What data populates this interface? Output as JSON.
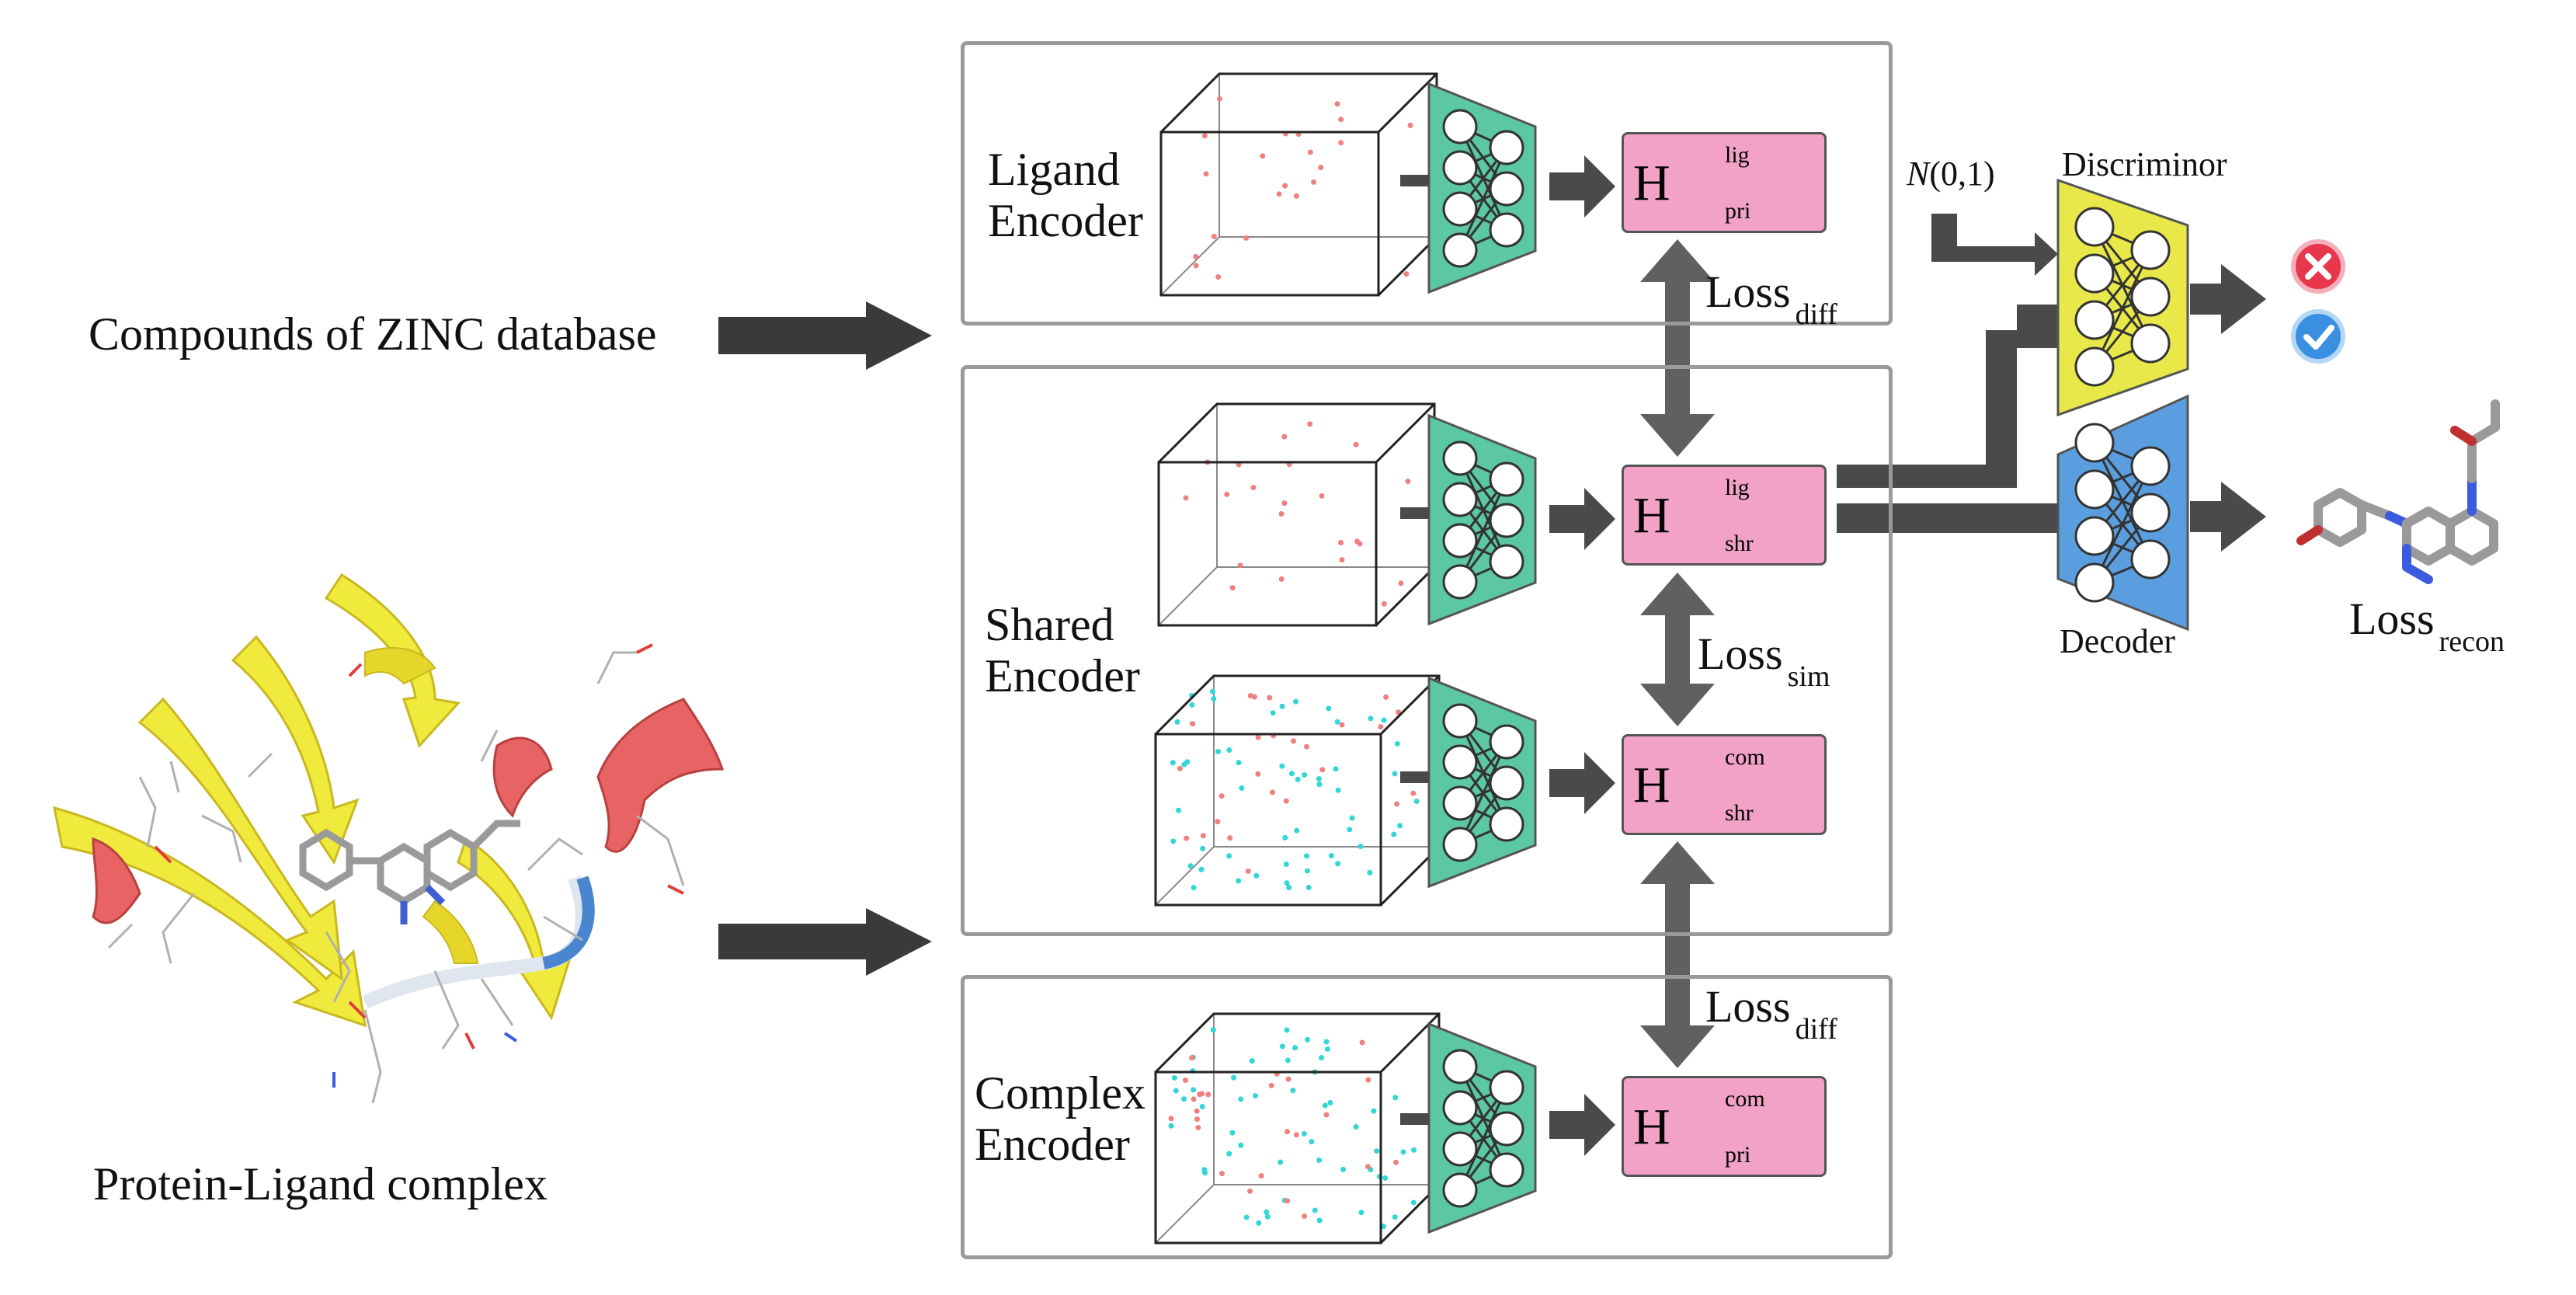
{
  "inputs": {
    "zinc_label": "Compounds of ZINC database",
    "complex_label": "Protein-Ligand complex"
  },
  "encoders": {
    "ligand": {
      "line1": "Ligand",
      "line2": "Encoder"
    },
    "shared": {
      "line1": "Shared",
      "line2": "Encoder"
    },
    "complex": {
      "line1": "Complex",
      "line2": "Encoder"
    }
  },
  "representations": {
    "h_lig_pri": {
      "main": "H",
      "sup": "lig",
      "sub": "pri"
    },
    "h_lig_shr": {
      "main": "H",
      "sup": "lig",
      "sub": "shr"
    },
    "h_com_shr": {
      "main": "H",
      "sup": "com",
      "sub": "shr"
    },
    "h_com_pri": {
      "main": "H",
      "sup": "com",
      "sub": "pri"
    }
  },
  "losses": {
    "diff_top": {
      "main": "Loss",
      "sub": "diff"
    },
    "sim": {
      "main": "Loss",
      "sub": "sim"
    },
    "diff_bottom": {
      "main": "Loss",
      "sub": "diff"
    },
    "recon": {
      "main": "Loss",
      "sub": "recon"
    }
  },
  "adversarial": {
    "prior_main": "N",
    "prior_args": "(0,1)",
    "discriminator_label": "Discriminor",
    "decoder_label": "Decoder"
  },
  "colors": {
    "panel_border": "#9a9a9a",
    "arrow": "#4a4a4a",
    "h_box": "#f2a2c6",
    "encoder_net": "#5cc8a2",
    "discriminator": "#e8e84a",
    "decoder": "#5b9ee0",
    "reject": "#e8364c",
    "accept": "#3b8fe0",
    "ligand_point": "#f08080",
    "complex_point": "#33d6d6",
    "ribbon_yellow": "#f0ea3c",
    "ribbon_red": "#e86464"
  }
}
